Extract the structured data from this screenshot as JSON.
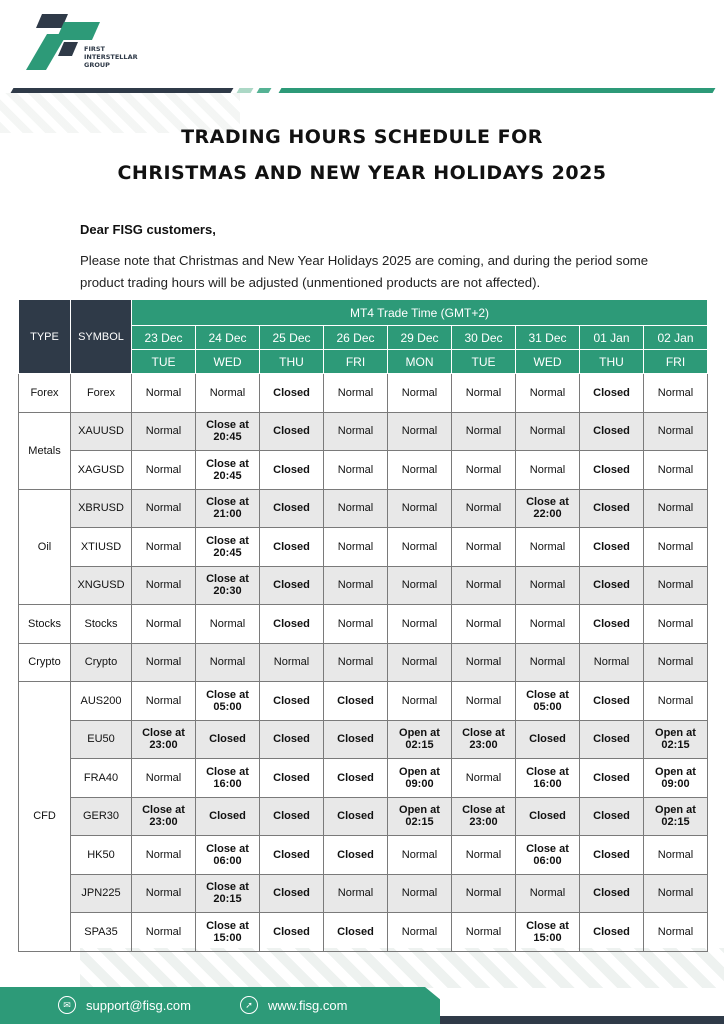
{
  "brand": {
    "name_lines": [
      "FIRST",
      "INTERSTELLAR",
      "GROUP"
    ],
    "colors": {
      "green": "#2d9a78",
      "dark": "#2f3a48"
    }
  },
  "title": [
    "TRADING HOURS SCHEDULE FOR",
    "CHRISTMAS AND NEW YEAR HOLIDAYS 2025"
  ],
  "greeting": "Dear FISG customers,",
  "paragraph": "Please note that Christmas and New Year Holidays 2025 are coming, and during the period some product trading hours will be adjusted (unmentioned products are not affected).",
  "table": {
    "type_header": "TYPE",
    "symbol_header": "SYMBOL",
    "group_header": "MT4 Trade Time (GMT+2)",
    "dates": [
      "23 Dec",
      "24 Dec",
      "25 Dec",
      "26 Dec",
      "29 Dec",
      "30 Dec",
      "31 Dec",
      "01 Jan",
      "02 Jan"
    ],
    "days": [
      "TUE",
      "WED",
      "THU",
      "FRI",
      "MON",
      "TUE",
      "WED",
      "THU",
      "FRI"
    ],
    "groups": [
      {
        "type": "Forex",
        "rows": [
          {
            "symbol": "Forex",
            "values": [
              "Normal",
              "Normal",
              "Closed",
              "Normal",
              "Normal",
              "Normal",
              "Normal",
              "Closed",
              "Normal"
            ]
          }
        ]
      },
      {
        "type": "Metals",
        "rows": [
          {
            "symbol": "XAUUSD",
            "values": [
              "Normal",
              "Close at 20:45",
              "Closed",
              "Normal",
              "Normal",
              "Normal",
              "Normal",
              "Closed",
              "Normal"
            ]
          },
          {
            "symbol": "XAGUSD",
            "values": [
              "Normal",
              "Close at 20:45",
              "Closed",
              "Normal",
              "Normal",
              "Normal",
              "Normal",
              "Closed",
              "Normal"
            ]
          }
        ]
      },
      {
        "type": "Oil",
        "rows": [
          {
            "symbol": "XBRUSD",
            "values": [
              "Normal",
              "Close at 21:00",
              "Closed",
              "Normal",
              "Normal",
              "Normal",
              "Close at 22:00",
              "Closed",
              "Normal"
            ]
          },
          {
            "symbol": "XTIUSD",
            "values": [
              "Normal",
              "Close at 20:45",
              "Closed",
              "Normal",
              "Normal",
              "Normal",
              "Normal",
              "Closed",
              "Normal"
            ]
          },
          {
            "symbol": "XNGUSD",
            "values": [
              "Normal",
              "Close at 20:30",
              "Closed",
              "Normal",
              "Normal",
              "Normal",
              "Normal",
              "Closed",
              "Normal"
            ]
          }
        ]
      },
      {
        "type": "Stocks",
        "rows": [
          {
            "symbol": "Stocks",
            "values": [
              "Normal",
              "Normal",
              "Closed",
              "Normal",
              "Normal",
              "Normal",
              "Normal",
              "Closed",
              "Normal"
            ]
          }
        ]
      },
      {
        "type": "Crypto",
        "rows": [
          {
            "symbol": "Crypto",
            "values": [
              "Normal",
              "Normal",
              "Normal",
              "Normal",
              "Normal",
              "Normal",
              "Normal",
              "Normal",
              "Normal"
            ]
          }
        ]
      },
      {
        "type": "CFD",
        "rows": [
          {
            "symbol": "AUS200",
            "values": [
              "Normal",
              "Close at 05:00",
              "Closed",
              "Closed",
              "Normal",
              "Normal",
              "Close at 05:00",
              "Closed",
              "Normal"
            ]
          },
          {
            "symbol": "EU50",
            "values": [
              "Close at 23:00",
              "Closed",
              "Closed",
              "Closed",
              "Open at 02:15",
              "Close at 23:00",
              "Closed",
              "Closed",
              "Open at 02:15"
            ]
          },
          {
            "symbol": "FRA40",
            "values": [
              "Normal",
              "Close at 16:00",
              "Closed",
              "Closed",
              "Open at 09:00",
              "Normal",
              "Close at 16:00",
              "Closed",
              "Open at 09:00"
            ]
          },
          {
            "symbol": "GER30",
            "values": [
              "Close at 23:00",
              "Closed",
              "Closed",
              "Closed",
              "Open at 02:15",
              "Close at 23:00",
              "Closed",
              "Closed",
              "Open at 02:15"
            ]
          },
          {
            "symbol": "HK50",
            "values": [
              "Normal",
              "Close at 06:00",
              "Closed",
              "Closed",
              "Normal",
              "Normal",
              "Close at 06:00",
              "Closed",
              "Normal"
            ]
          },
          {
            "symbol": "JPN225",
            "values": [
              "Normal",
              "Close at 20:15",
              "Closed",
              "Normal",
              "Normal",
              "Normal",
              "Normal",
              "Closed",
              "Normal"
            ]
          },
          {
            "symbol": "SPA35",
            "values": [
              "Normal",
              "Close at 15:00",
              "Closed",
              "Closed",
              "Normal",
              "Normal",
              "Close at 15:00",
              "Closed",
              "Normal"
            ]
          }
        ]
      }
    ]
  },
  "footer": {
    "email": "support@fisg.com",
    "email_icon": "mail-icon",
    "website": "www.fisg.com",
    "website_icon": "cursor-icon"
  }
}
